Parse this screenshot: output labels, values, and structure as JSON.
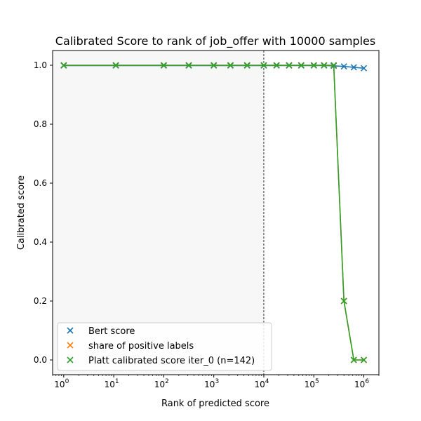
{
  "chart_data": {
    "type": "scatter",
    "title": "Calibrated Score to rank of job_offer with 10000 samples",
    "xlabel": "Rank of predicted score",
    "ylabel": "Calibrated score",
    "x_scale": "log",
    "xlim": [
      0.6,
      2000000
    ],
    "ylim": [
      -0.05,
      1.05
    ],
    "x_ticks": [
      {
        "value": 1,
        "base": "10",
        "exp": "0"
      },
      {
        "value": 10,
        "base": "10",
        "exp": "1"
      },
      {
        "value": 100,
        "base": "10",
        "exp": "2"
      },
      {
        "value": 1000,
        "base": "10",
        "exp": "3"
      },
      {
        "value": 10000,
        "base": "10",
        "exp": "4"
      },
      {
        "value": 100000,
        "base": "10",
        "exp": "5"
      },
      {
        "value": 1000000,
        "base": "10",
        "exp": "6"
      }
    ],
    "y_ticks": [
      {
        "value": 0.0,
        "label": "0.0"
      },
      {
        "value": 0.2,
        "label": "0.2"
      },
      {
        "value": 0.4,
        "label": "0.4"
      },
      {
        "value": 0.6,
        "label": "0.6"
      },
      {
        "value": 0.8,
        "label": "0.8"
      },
      {
        "value": 1.0,
        "label": "1.0"
      }
    ],
    "grid": false,
    "shaded_region": {
      "x_from": 0.6,
      "x_to": 10000,
      "color": "#f7f7f7"
    },
    "vline": {
      "x": 10000,
      "style": "dashed",
      "color": "#000000"
    },
    "legend_position": "lower-left",
    "series": [
      {
        "name": "Bert score",
        "color": "#1f77b4",
        "marker": "x",
        "x": [
          1,
          11,
          100,
          316,
          1000,
          2154,
          4642,
          10000,
          18000,
          32000,
          56000,
          100000,
          160000,
          250000,
          400000,
          630000,
          1000000
        ],
        "y": [
          0.999,
          0.999,
          0.999,
          0.999,
          0.999,
          0.999,
          0.999,
          0.999,
          0.999,
          0.999,
          0.999,
          0.999,
          0.999,
          0.998,
          0.996,
          0.993,
          0.99
        ]
      },
      {
        "name": "share of positive labels",
        "color": "#ff7f0e",
        "marker": "x",
        "x": [
          1,
          11,
          100,
          316,
          1000,
          2154,
          4642,
          10000,
          18000,
          32000,
          56000,
          100000,
          160000,
          250000,
          400000,
          630000,
          1000000
        ],
        "y": [
          1.0,
          1.0,
          1.0,
          1.0,
          1.0,
          1.0,
          1.0,
          1.0,
          1.0,
          1.0,
          1.0,
          1.0,
          1.0,
          1.0,
          0.2,
          0.0,
          0.0
        ]
      },
      {
        "name": "Platt calibrated score iter_0 (n=142)",
        "color": "#2ca02c",
        "marker": "x",
        "x": [
          1,
          11,
          100,
          316,
          1000,
          2154,
          4642,
          10000,
          18000,
          32000,
          56000,
          100000,
          160000,
          250000,
          400000,
          630000,
          1000000
        ],
        "y": [
          1.0,
          1.0,
          1.0,
          1.0,
          1.0,
          1.0,
          1.0,
          1.0,
          1.0,
          1.0,
          1.0,
          1.0,
          1.0,
          1.0,
          0.2,
          0.0,
          0.0
        ]
      }
    ]
  }
}
